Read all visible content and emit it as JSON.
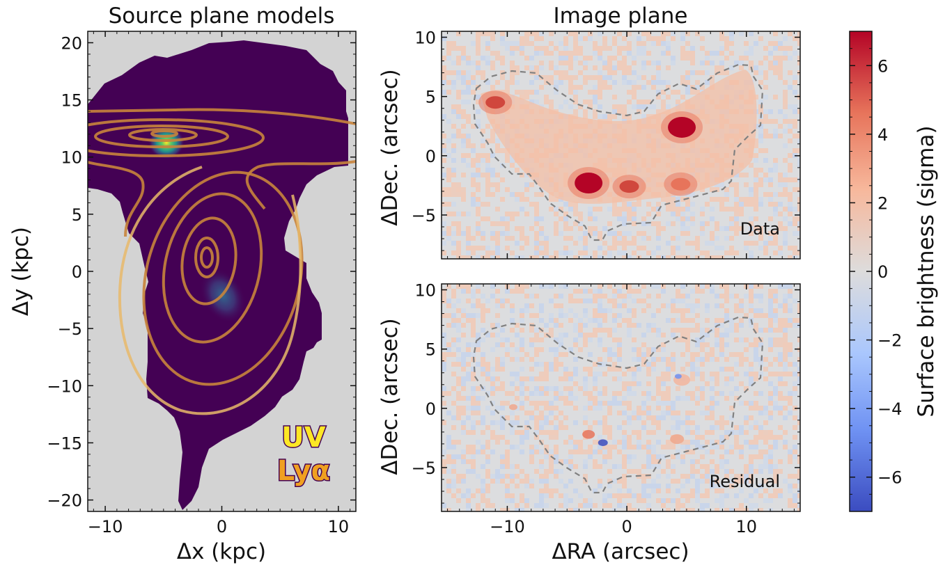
{
  "colors": {
    "background": "#ffffff",
    "masked_region": "#d3d3d3",
    "source_fill": "#440154",
    "uv_blob": "#fde725",
    "lya_contour": "#c8843c",
    "lya_outer_contour": "#e8b86a",
    "aperture_line": "#808080",
    "colormap": "coolwarm"
  },
  "chart_data": [
    {
      "panel": "source_plane",
      "type": "heatmap",
      "title": "Source plane models",
      "xlabel": "Δx (kpc)",
      "ylabel": "Δy (kpc)",
      "xlim": [
        -11.5,
        11.5
      ],
      "ylim": [
        -21,
        21
      ],
      "xticks": [
        -10,
        0,
        10
      ],
      "yticks": [
        -20,
        -15,
        -10,
        -5,
        0,
        5,
        10,
        15,
        20
      ],
      "legend": {
        "uv": "UV",
        "lya": "Lyα",
        "placement": "bottom-right"
      },
      "uv_components": [
        {
          "x": -5.0,
          "y": 11.3,
          "peak": 1.0
        },
        {
          "x": -0.5,
          "y": -2.2,
          "peak": 0.45
        }
      ],
      "lya_contour_centers": [
        {
          "x": -4.7,
          "y": 11.6
        },
        {
          "x": -1.4,
          "y": 1.0
        }
      ]
    },
    {
      "panel": "image_plane_data",
      "type": "heatmap",
      "title": "Image plane",
      "label": "Data",
      "xlabel": "",
      "ylabel": "ΔDec. (arcsec)",
      "xlim": [
        -15.5,
        14.5
      ],
      "ylim": [
        -8.7,
        10.5
      ],
      "yticks": [
        -5,
        0,
        5,
        10
      ],
      "bright_features": [
        {
          "x": 4.6,
          "y": 2.4,
          "peak_sigma": 7
        },
        {
          "x": -3.2,
          "y": -2.3,
          "peak_sigma": 7
        },
        {
          "x": 0.2,
          "y": -2.6,
          "peak_sigma": 4.5
        },
        {
          "x": -11.0,
          "y": 4.5,
          "peak_sigma": 4
        },
        {
          "x": 4.5,
          "y": -2.4,
          "peak_sigma": 3
        }
      ]
    },
    {
      "panel": "image_plane_residual",
      "type": "heatmap",
      "label": "Residual",
      "xlabel": "ΔRA (arcsec)",
      "ylabel": "ΔDec. (arcsec)",
      "xlim": [
        -15.5,
        14.5
      ],
      "ylim": [
        -8.7,
        10.5
      ],
      "xticks": [
        -10,
        0,
        10
      ],
      "yticks": [
        -5,
        0,
        5,
        10
      ]
    },
    {
      "panel": "colorbar",
      "type": "colorbar",
      "label": "Surface brightness (sigma)",
      "range": [
        -7,
        7
      ],
      "ticks": [
        -6,
        -4,
        -2,
        0,
        2,
        4,
        6
      ]
    }
  ]
}
